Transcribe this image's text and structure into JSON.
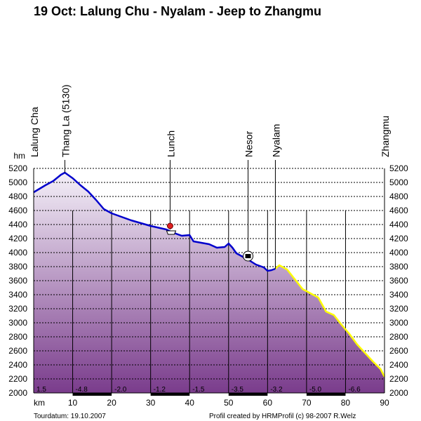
{
  "chart_data": {
    "type": "area",
    "title": "19 Oct: Lalung Chu - Nyalam - Jeep to Zhangmu",
    "ylabel": "hm",
    "xlabel": "km",
    "xlim": [
      0,
      90
    ],
    "ylim": [
      2000,
      5200
    ],
    "x_ticks": [
      0,
      10,
      20,
      30,
      40,
      50,
      60,
      70,
      80,
      90
    ],
    "y_ticks": [
      2000,
      2200,
      2400,
      2600,
      2800,
      3000,
      3200,
      3400,
      3600,
      3800,
      4000,
      4200,
      4400,
      4600,
      4800,
      5000,
      5200
    ],
    "grid": true,
    "series": [
      {
        "segment": "trek",
        "color": "#0000cc",
        "x": [
          0,
          3,
          5,
          7,
          8,
          10,
          12,
          14,
          16,
          18,
          20,
          25,
          30,
          34,
          36,
          38,
          40,
          41,
          45,
          47,
          49,
          50,
          51,
          52,
          55,
          57,
          59,
          60,
          61,
          62
        ],
        "y": [
          4860,
          4960,
          5020,
          5110,
          5140,
          5060,
          4960,
          4870,
          4750,
          4620,
          4560,
          4460,
          4380,
          4330,
          4280,
          4240,
          4250,
          4160,
          4120,
          4070,
          4080,
          4130,
          4070,
          3990,
          3900,
          3830,
          3790,
          3740,
          3750,
          3770
        ]
      },
      {
        "segment": "jeep",
        "color": "#ffff00",
        "x": [
          62,
          63,
          65,
          67,
          69,
          71,
          73,
          75,
          77,
          79,
          81,
          83,
          85,
          87,
          89,
          90
        ],
        "y": [
          3770,
          3820,
          3760,
          3620,
          3480,
          3420,
          3360,
          3160,
          3110,
          2970,
          2840,
          2690,
          2570,
          2450,
          2340,
          2230
        ]
      }
    ],
    "waypoints": [
      {
        "name": "Lalung Cha",
        "x": 0
      },
      {
        "name": "Thang La (5130)",
        "x": 8
      },
      {
        "name": "Lunch",
        "x": 35
      },
      {
        "name": "Nesor",
        "x": 55
      },
      {
        "name": "Nyalam",
        "x": 62
      },
      {
        "name": "Zhangmu",
        "x": 90
      }
    ],
    "gradients": [
      {
        "x0": 0,
        "x1": 10,
        "label": "1.5"
      },
      {
        "x0": 10,
        "x1": 20,
        "label": "-4.8"
      },
      {
        "x0": 20,
        "x1": 30,
        "label": "-2.0"
      },
      {
        "x0": 30,
        "x1": 40,
        "label": "-1.2"
      },
      {
        "x0": 40,
        "x1": 50,
        "label": "-1.5"
      },
      {
        "x0": 50,
        "x1": 60,
        "label": "-3.5"
      },
      {
        "x0": 60,
        "x1": 70,
        "label": "-3.2"
      },
      {
        "x0": 70,
        "x1": 80,
        "label": "-5.0"
      },
      {
        "x0": 80,
        "x1": 90,
        "label": "-6.6"
      }
    ],
    "markers": [
      {
        "name": "restaurant-icon",
        "x": 35,
        "y": 4330
      },
      {
        "name": "bus-icon",
        "x": 55,
        "y": 3950
      }
    ]
  },
  "footer": {
    "tourdate": "Tourdatum: 19.10.2007",
    "credit": "Profil created by HRMProfil (c) 98-2007 R.Welz"
  },
  "colors": {
    "fill_top": "#f4f0f8",
    "fill_bottom": "#7a3c8c",
    "trek_line": "#0000cc",
    "jeep_line": "#ffff00"
  }
}
